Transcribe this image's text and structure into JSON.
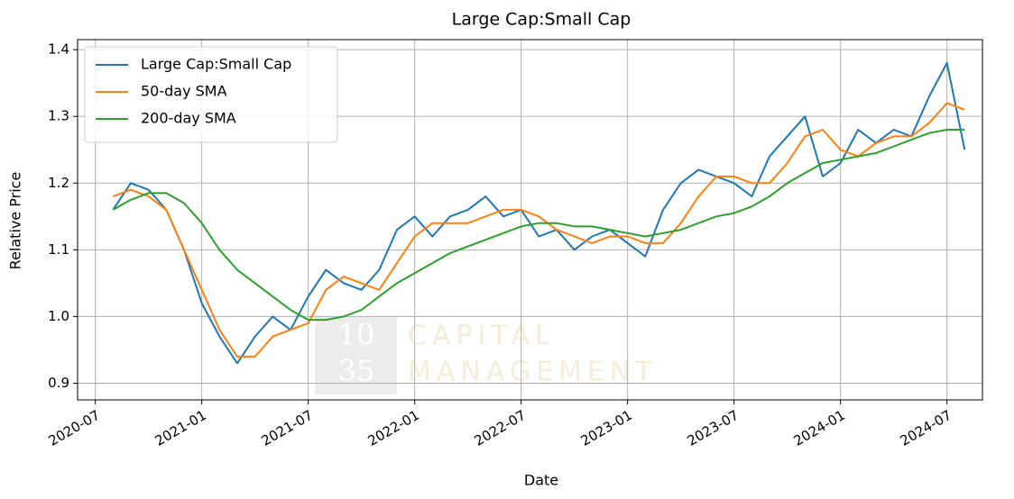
{
  "chart_data": {
    "type": "line",
    "title": "Large Cap:Small Cap",
    "x_label": "Date",
    "y_label": "Relative Price",
    "x": [
      "2020-08",
      "2020-09",
      "2020-10",
      "2020-11",
      "2020-12",
      "2021-01",
      "2021-02",
      "2021-03",
      "2021-04",
      "2021-05",
      "2021-06",
      "2021-07",
      "2021-08",
      "2021-09",
      "2021-10",
      "2021-11",
      "2021-12",
      "2022-01",
      "2022-02",
      "2022-03",
      "2022-04",
      "2022-05",
      "2022-06",
      "2022-07",
      "2022-08",
      "2022-09",
      "2022-10",
      "2022-11",
      "2022-12",
      "2023-01",
      "2023-02",
      "2023-03",
      "2023-04",
      "2023-05",
      "2023-06",
      "2023-07",
      "2023-08",
      "2023-09",
      "2023-10",
      "2023-11",
      "2023-12",
      "2024-01",
      "2024-02",
      "2024-03",
      "2024-04",
      "2024-05",
      "2024-06",
      "2024-07",
      "2024-08"
    ],
    "series": [
      {
        "name": "Large Cap:Small Cap",
        "color": "#1f77b4",
        "values": [
          1.16,
          1.2,
          1.19,
          1.16,
          1.1,
          1.02,
          0.97,
          0.93,
          0.97,
          1.0,
          0.98,
          1.03,
          1.07,
          1.05,
          1.04,
          1.07,
          1.13,
          1.15,
          1.12,
          1.15,
          1.16,
          1.18,
          1.15,
          1.16,
          1.12,
          1.13,
          1.1,
          1.12,
          1.13,
          1.11,
          1.09,
          1.16,
          1.2,
          1.22,
          1.21,
          1.2,
          1.18,
          1.24,
          1.27,
          1.3,
          1.21,
          1.23,
          1.28,
          1.26,
          1.28,
          1.27,
          1.33,
          1.38,
          1.25
        ]
      },
      {
        "name": "50-day SMA",
        "color": "#ff7f0e",
        "values": [
          1.18,
          1.19,
          1.18,
          1.16,
          1.1,
          1.04,
          0.98,
          0.94,
          0.94,
          0.97,
          0.98,
          0.99,
          1.04,
          1.06,
          1.05,
          1.04,
          1.08,
          1.12,
          1.14,
          1.14,
          1.14,
          1.15,
          1.16,
          1.16,
          1.15,
          1.13,
          1.12,
          1.11,
          1.12,
          1.12,
          1.11,
          1.11,
          1.14,
          1.18,
          1.21,
          1.21,
          1.2,
          1.2,
          1.23,
          1.27,
          1.28,
          1.25,
          1.24,
          1.26,
          1.27,
          1.27,
          1.29,
          1.32,
          1.31
        ]
      },
      {
        "name": "200-day SMA",
        "color": "#2ca02c",
        "values": [
          1.16,
          1.175,
          1.185,
          1.185,
          1.17,
          1.14,
          1.1,
          1.07,
          1.05,
          1.03,
          1.01,
          0.995,
          0.995,
          1.0,
          1.01,
          1.03,
          1.05,
          1.065,
          1.08,
          1.095,
          1.105,
          1.115,
          1.125,
          1.135,
          1.14,
          1.14,
          1.135,
          1.135,
          1.13,
          1.125,
          1.12,
          1.125,
          1.13,
          1.14,
          1.15,
          1.155,
          1.165,
          1.18,
          1.2,
          1.215,
          1.23,
          1.235,
          1.24,
          1.245,
          1.255,
          1.265,
          1.275,
          1.28,
          1.28
        ]
      }
    ],
    "xlim": [
      "2020-06",
      "2024-09"
    ],
    "xticks": [
      "2020-07",
      "2021-01",
      "2021-07",
      "2022-01",
      "2022-07",
      "2023-01",
      "2023-07",
      "2024-01",
      "2024-07"
    ],
    "ylim": [
      0.875,
      1.415
    ],
    "yticks": [
      0.9,
      {
        "value": 1,
        "label": "1.0"
      },
      1.1,
      1.2,
      1.3,
      1.4
    ],
    "grid": true,
    "legend": "upper-left",
    "watermark": {
      "logo": [
        "10",
        "35"
      ],
      "text": [
        "CAPITAL",
        "MANAGEMENT"
      ]
    }
  }
}
